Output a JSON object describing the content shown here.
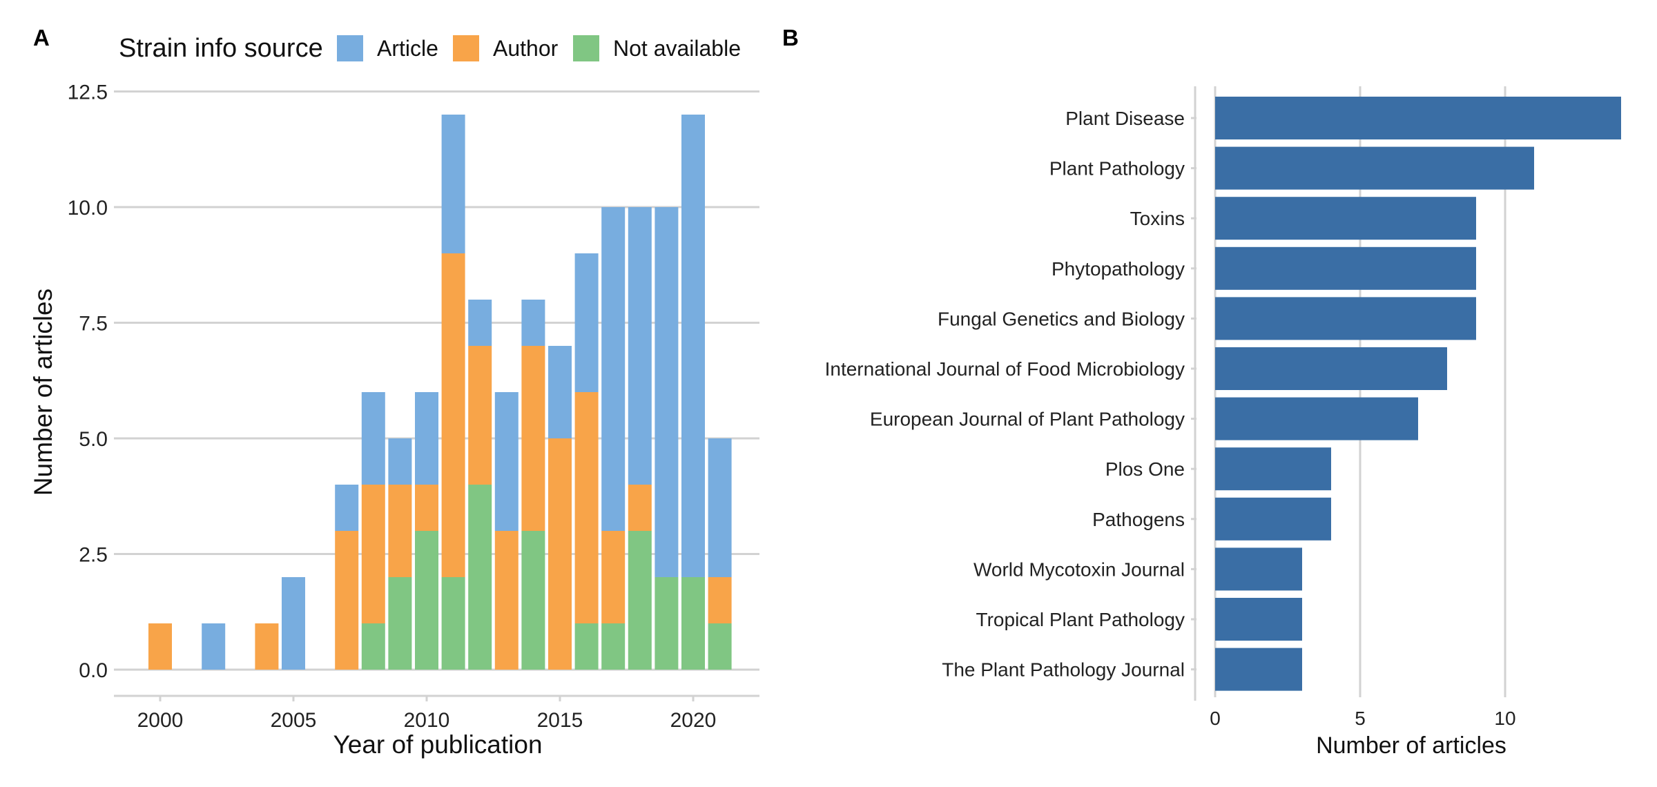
{
  "colors": {
    "article": "#78ADDF",
    "author": "#F8A449",
    "not_available": "#80C683",
    "journal_bar": "#3A6EA5",
    "grid": "#D2D2D2"
  },
  "chart_data": [
    {
      "type": "bar",
      "panel_label": "A",
      "stacked": true,
      "xlabel": "Year of publication",
      "ylabel": "Number of articles",
      "legend": {
        "title": "Strain info source",
        "position": "top-left"
      },
      "x": [
        2000,
        2002,
        2004,
        2005,
        2007,
        2008,
        2009,
        2010,
        2011,
        2012,
        2013,
        2014,
        2015,
        2016,
        2017,
        2018,
        2019,
        2020,
        2021
      ],
      "series": [
        {
          "name": "Not available",
          "values": [
            0,
            0,
            0,
            0,
            0,
            1,
            2,
            3,
            2,
            4,
            0,
            3,
            0,
            1,
            1,
            3,
            2,
            2,
            1
          ]
        },
        {
          "name": "Author",
          "values": [
            1,
            0,
            1,
            0,
            3,
            3,
            2,
            1,
            7,
            3,
            3,
            4,
            5,
            5,
            2,
            1,
            0,
            0,
            1
          ]
        },
        {
          "name": "Article",
          "values": [
            0,
            1,
            0,
            2,
            1,
            2,
            1,
            2,
            3,
            1,
            3,
            1,
            2,
            3,
            7,
            6,
            8,
            10,
            3
          ]
        }
      ],
      "xticks": [
        "2000",
        "2005",
        "2010",
        "2015",
        "2020"
      ],
      "yticks": [
        "0.0",
        "2.5",
        "5.0",
        "7.5",
        "10.0",
        "12.5"
      ],
      "ylim": [
        0,
        12.5
      ],
      "xlim": [
        1998.5,
        2022.5
      ],
      "grid": "horizontal"
    },
    {
      "type": "bar",
      "orientation": "horizontal",
      "panel_label": "B",
      "xlabel": "Number of articles",
      "categories": [
        "Plant Disease",
        "Plant Pathology",
        "Toxins",
        "Phytopathology",
        "Fungal Genetics and Biology",
        "International Journal of Food Microbiology",
        "European Journal of Plant Pathology",
        "Plos One",
        "Pathogens",
        "World Mycotoxin Journal",
        "Tropical Plant Pathology",
        "The Plant Pathology Journal"
      ],
      "values": [
        14,
        11,
        9,
        9,
        9,
        8,
        7,
        4,
        4,
        3,
        3,
        3
      ],
      "xticks": [
        "0",
        "5",
        "10"
      ],
      "xlim": [
        0,
        14.4
      ],
      "grid": "vertical"
    }
  ]
}
